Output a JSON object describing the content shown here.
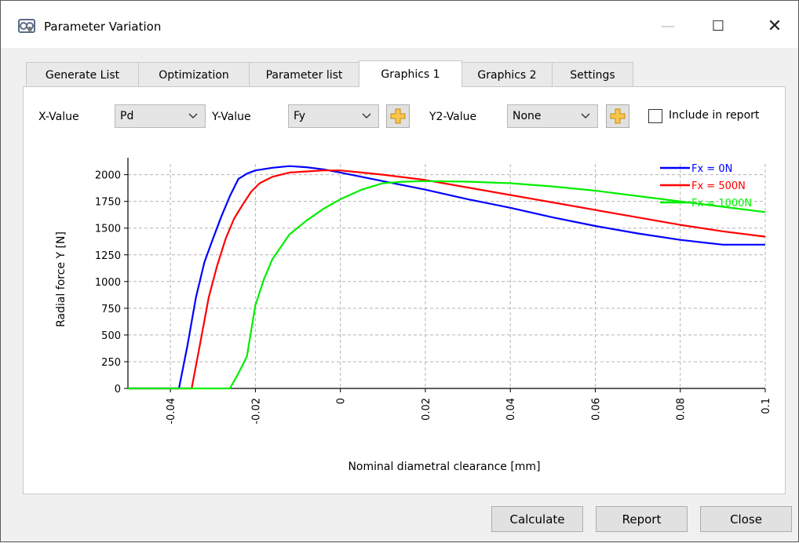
{
  "window": {
    "title": "Parameter Variation",
    "minimize_symbol": "—",
    "maximize_symbol": "☐",
    "close_symbol": "✕"
  },
  "tabs": [
    {
      "label": "Generate List",
      "active": false
    },
    {
      "label": "Optimization",
      "active": false
    },
    {
      "label": "Parameter list",
      "active": false
    },
    {
      "label": "Graphics 1",
      "active": true
    },
    {
      "label": "Graphics 2",
      "active": false
    },
    {
      "label": "Settings",
      "active": false
    }
  ],
  "controls": {
    "x_label": "X-Value",
    "x_value": "Pd",
    "y_label": "Y-Value",
    "y_value": "Fy",
    "y2_label": "Y2-Value",
    "y2_value": "None",
    "include_label": "Include in report",
    "include_checked": false
  },
  "buttons": {
    "calculate": "Calculate",
    "report": "Report",
    "close": "Close"
  },
  "chart_data": {
    "type": "line",
    "xlabel": "Nominal diametral clearance [mm]",
    "ylabel": "Radial force Y [N]",
    "xlim": [
      -0.05,
      0.1
    ],
    "ylim": [
      0,
      2100
    ],
    "xticks": [
      "-0.04",
      "-0.02",
      "0",
      "0.02",
      "0.04",
      "0.06",
      "0.08",
      "0.1"
    ],
    "xtick_values": [
      -0.04,
      -0.02,
      0,
      0.02,
      0.04,
      0.06,
      0.08,
      0.1
    ],
    "yticks": [
      "0",
      "250",
      "500",
      "750",
      "1000",
      "1250",
      "1500",
      "1750",
      "2000"
    ],
    "ytick_values": [
      0,
      250,
      500,
      750,
      1000,
      1250,
      1500,
      1750,
      2000
    ],
    "grid": true,
    "legend_position": "top-right",
    "series": [
      {
        "name": "Fx = 0N",
        "color": "#0000ff",
        "x": [
          -0.05,
          -0.038,
          -0.036,
          -0.034,
          -0.032,
          -0.03,
          -0.028,
          -0.026,
          -0.024,
          -0.022,
          -0.02,
          -0.016,
          -0.012,
          -0.008,
          -0.004,
          0,
          0.01,
          0.02,
          0.03,
          0.04,
          0.05,
          0.06,
          0.07,
          0.08,
          0.09,
          0.1
        ],
        "y": [
          0,
          0,
          400,
          850,
          1180,
          1400,
          1610,
          1800,
          1960,
          2010,
          2040,
          2065,
          2080,
          2070,
          2050,
          2020,
          1940,
          1860,
          1770,
          1690,
          1600,
          1520,
          1450,
          1390,
          1345,
          1345
        ]
      },
      {
        "name": "Fx = 500N",
        "color": "#ff0000",
        "x": [
          -0.05,
          -0.035,
          -0.033,
          -0.031,
          -0.029,
          -0.027,
          -0.025,
          -0.023,
          -0.021,
          -0.019,
          -0.016,
          -0.012,
          -0.008,
          -0.004,
          0,
          0.005,
          0.01,
          0.02,
          0.03,
          0.04,
          0.05,
          0.06,
          0.07,
          0.08,
          0.09,
          0.1
        ],
        "y": [
          0,
          0,
          420,
          850,
          1150,
          1400,
          1590,
          1720,
          1840,
          1920,
          1980,
          2020,
          2030,
          2040,
          2040,
          2020,
          2000,
          1950,
          1880,
          1810,
          1740,
          1670,
          1600,
          1530,
          1470,
          1420
        ]
      },
      {
        "name": "Fx = 1000N",
        "color": "#00ee00",
        "x": [
          -0.05,
          -0.026,
          -0.024,
          -0.022,
          -0.02,
          -0.018,
          -0.016,
          -0.012,
          -0.008,
          -0.004,
          0,
          0.005,
          0.01,
          0.015,
          0.02,
          0.03,
          0.04,
          0.05,
          0.06,
          0.07,
          0.08,
          0.09,
          0.1
        ],
        "y": [
          0,
          0,
          140,
          300,
          780,
          1020,
          1210,
          1440,
          1570,
          1680,
          1770,
          1860,
          1920,
          1935,
          1940,
          1935,
          1920,
          1890,
          1850,
          1800,
          1750,
          1700,
          1650
        ]
      }
    ]
  }
}
